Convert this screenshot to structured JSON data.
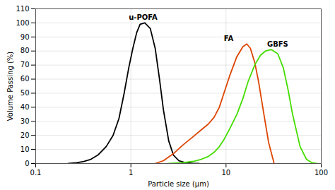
{
  "chart_data": {
    "type": "line",
    "xlabel": "Particle size (μm)",
    "ylabel": "Volume Passing (%)",
    "log": "x",
    "grid": true,
    "xlim": [
      0.1,
      100
    ],
    "xticks": [
      0.1,
      1,
      10,
      100
    ],
    "ylim": [
      0,
      110
    ],
    "yticks": [
      0,
      10,
      20,
      30,
      40,
      50,
      60,
      70,
      80,
      90,
      100,
      110
    ],
    "series": [
      {
        "name": "u-POFA",
        "color": "#000000",
        "x": [
          0.22,
          0.27,
          0.32,
          0.38,
          0.45,
          0.55,
          0.65,
          0.75,
          0.85,
          0.95,
          1.05,
          1.15,
          1.25,
          1.4,
          1.6,
          1.8,
          2.0,
          2.2,
          2.5,
          2.8,
          3.2,
          3.8,
          4.5,
          5.2
        ],
        "values": [
          0,
          0.5,
          1.5,
          3,
          6,
          12,
          20,
          32,
          50,
          68,
          82,
          93,
          99,
          100,
          96,
          82,
          60,
          38,
          16,
          6,
          2,
          0.5,
          0.1,
          0
        ]
      },
      {
        "name": "FA",
        "color": "#dd4400",
        "x": [
          1.8,
          2.2,
          2.8,
          3.5,
          4.5,
          5.5,
          6.5,
          7.5,
          8.5,
          9.5,
          11.0,
          13.0,
          15.0,
          16.5,
          18.0,
          20.0,
          22.0,
          25.0,
          28.0,
          32.0
        ],
        "values": [
          0,
          2,
          7,
          13,
          19,
          24,
          28,
          33,
          40,
          50,
          63,
          76,
          83,
          85,
          82,
          72,
          58,
          35,
          15,
          0
        ]
      },
      {
        "name": "GBFS",
        "color": "#44dd00",
        "x": [
          2.5,
          3.5,
          4.5,
          5.5,
          6.5,
          7.5,
          8.5,
          9.5,
          11.0,
          13.0,
          15.0,
          17.0,
          20.0,
          23.0,
          26.0,
          30.0,
          35.0,
          40.0,
          45.0,
          50.0,
          60.0,
          70.0,
          80.0,
          90.0
        ],
        "values": [
          0,
          0.5,
          1.5,
          3,
          5,
          8,
          12,
          17,
          25,
          35,
          46,
          58,
          70,
          77,
          80,
          81,
          78,
          68,
          52,
          35,
          12,
          3,
          0.5,
          0
        ]
      }
    ],
    "annotations": [
      {
        "text": "u-POFA",
        "x": 0.95,
        "y": 102
      },
      {
        "text": "FA",
        "x": 9.5,
        "y": 87
      },
      {
        "text": "GBFS",
        "x": 27.0,
        "y": 83
      }
    ]
  }
}
